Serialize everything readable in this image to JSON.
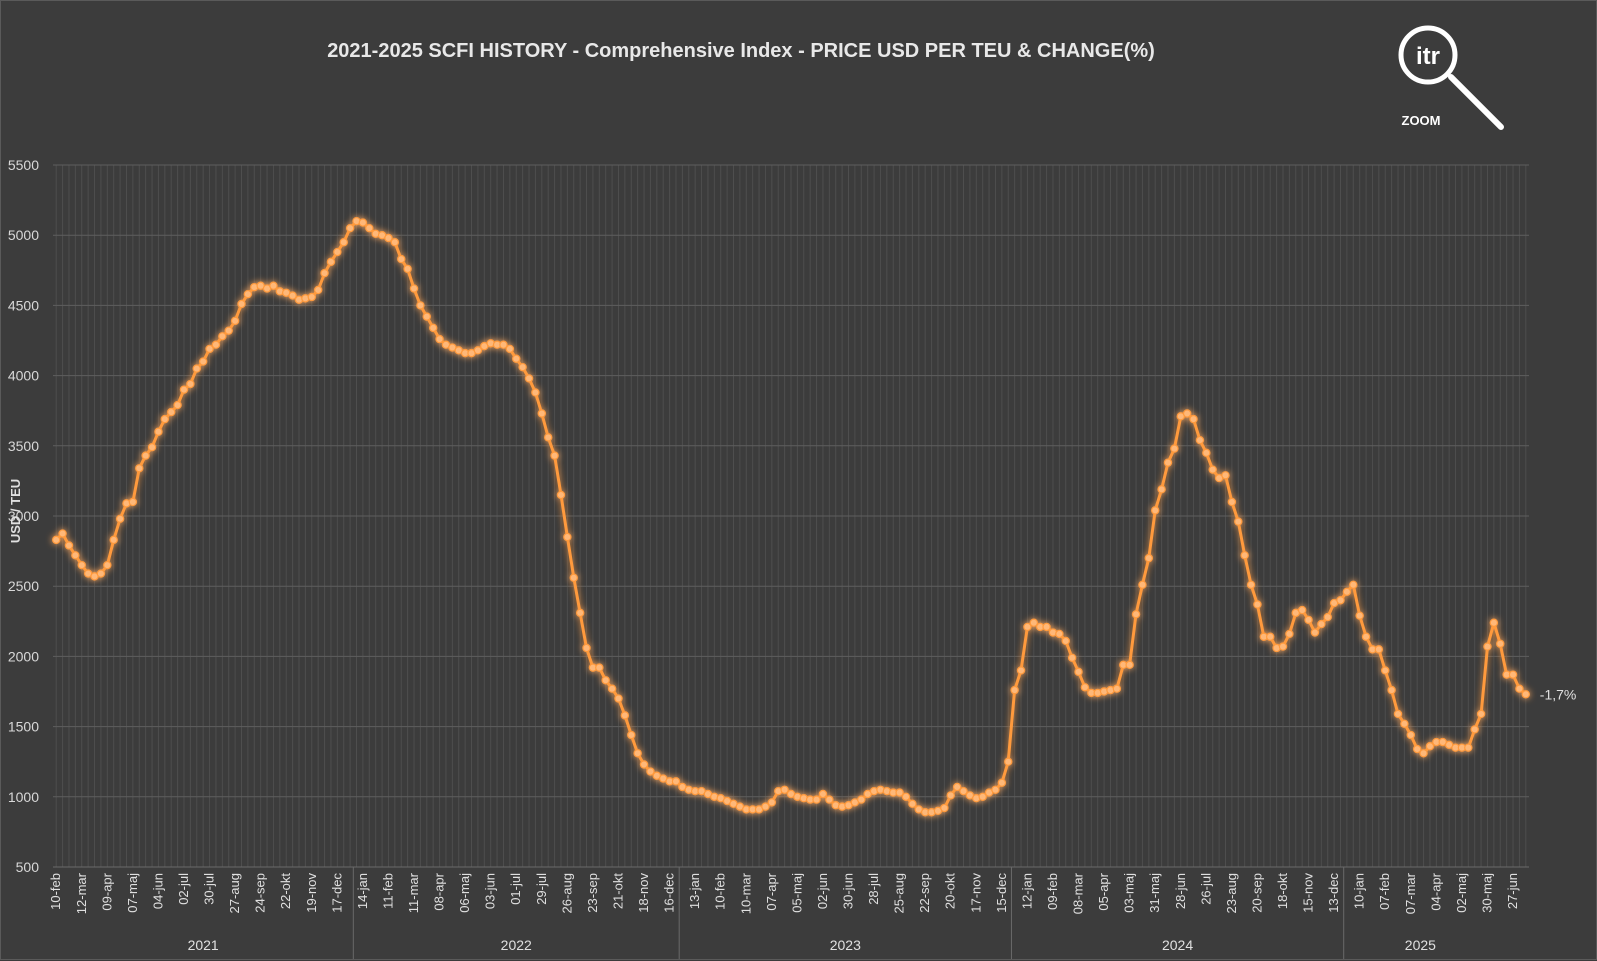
{
  "chart_data": {
    "type": "line",
    "title": "2021-2025 SCFI HISTORY - Comprehensive Index - PRICE USD PER TEU & CHANGE(%)",
    "ylabel": "USD / TEU",
    "ylim": [
      500,
      5500
    ],
    "yticks": [
      500,
      1000,
      1500,
      2000,
      2500,
      3000,
      3500,
      4000,
      4500,
      5000,
      5500
    ],
    "grid": true,
    "line_color": "#ff9a3c",
    "x_tick_labels": [
      "10-feb",
      "12-mar",
      "09-apr",
      "07-maj",
      "04-jun",
      "02-jul",
      "30-jul",
      "27-aug",
      "24-sep",
      "22-okt",
      "19-nov",
      "17-dec",
      "14-jan",
      "11-feb",
      "11-mar",
      "08-apr",
      "06-maj",
      "03-jun",
      "01-jul",
      "29-jul",
      "26-aug",
      "23-sep",
      "21-okt",
      "18-nov",
      "16-dec",
      "13-jan",
      "10-feb",
      "10-mar",
      "07-apr",
      "05-maj",
      "02-jun",
      "30-jun",
      "28-jul",
      "25-aug",
      "22-sep",
      "20-okt",
      "17-nov",
      "15-dec",
      "12-jan",
      "09-feb",
      "08-mar",
      "05-apr",
      "03-maj",
      "31-maj",
      "28-jun",
      "26-jul",
      "23-aug",
      "20-sep",
      "18-okt",
      "15-nov",
      "13-dec",
      "10-jan",
      "07-feb",
      "07-mar",
      "04-apr",
      "02-maj",
      "30-maj",
      "27-jun"
    ],
    "years": [
      {
        "label": "2021",
        "start": 0,
        "end": 46
      },
      {
        "label": "2022",
        "start": 47,
        "end": 97
      },
      {
        "label": "2023",
        "start": 98,
        "end": 149
      },
      {
        "label": "2024",
        "start": 150,
        "end": 201
      },
      {
        "label": "2025",
        "start": 202,
        "end": 225
      }
    ],
    "series": [
      {
        "values": [
          2830,
          2875,
          2790,
          2720,
          2650,
          2590,
          2570,
          2590,
          2650,
          2830,
          2980,
          3090,
          3100,
          3340,
          3430,
          3490,
          3600,
          3690,
          3740,
          3790,
          3900,
          3940,
          4050,
          4100,
          4190,
          4220,
          4280,
          4320,
          4390,
          4510,
          4580,
          4630,
          4640,
          4620,
          4640,
          4600,
          4590,
          4570,
          4540,
          4550,
          4560,
          4610,
          4730,
          4810,
          4880,
          4950,
          5050,
          5100,
          5090,
          5050,
          5010,
          5000,
          4980,
          4950,
          4830,
          4760,
          4620,
          4500,
          4420,
          4340,
          4260,
          4220,
          4200,
          4180,
          4160,
          4160,
          4180,
          4210,
          4230,
          4220,
          4220,
          4190,
          4120,
          4060,
          3980,
          3880,
          3730,
          3560,
          3430,
          3150,
          2850,
          2560,
          2310,
          2060,
          1920,
          1920,
          1830,
          1770,
          1700,
          1580,
          1440,
          1310,
          1230,
          1180,
          1150,
          1130,
          1110,
          1110,
          1070,
          1050,
          1040,
          1040,
          1020,
          1000,
          990,
          970,
          950,
          930,
          910,
          910,
          910,
          930,
          960,
          1040,
          1050,
          1020,
          1000,
          990,
          980,
          980,
          1020,
          980,
          940,
          930,
          940,
          960,
          980,
          1020,
          1040,
          1050,
          1040,
          1030,
          1030,
          1000,
          950,
          910,
          890,
          890,
          900,
          920,
          1010,
          1070,
          1040,
          1010,
          990,
          1000,
          1030,
          1050,
          1100,
          1250,
          1760,
          1900,
          2210,
          2240,
          2210,
          2210,
          2170,
          2160,
          2110,
          1990,
          1890,
          1780,
          1740,
          1740,
          1750,
          1760,
          1770,
          1940,
          1940,
          2300,
          2510,
          2700,
          3040,
          3190,
          3380,
          3480,
          3710,
          3730,
          3690,
          3540,
          3450,
          3330,
          3270,
          3290,
          3100,
          2960,
          2720,
          2510,
          2370,
          2140,
          2140,
          2060,
          2070,
          2160,
          2310,
          2330,
          2260,
          2170,
          2230,
          2280,
          2380,
          2400,
          2460,
          2510,
          2290,
          2140,
          2050,
          2050,
          1900,
          1760,
          1590,
          1520,
          1440,
          1340,
          1310,
          1360,
          1390,
          1390,
          1370,
          1350,
          1350,
          1350,
          1480,
          1590,
          2070,
          2240,
          2090,
          1870,
          1870,
          1770,
          1730
        ]
      }
    ],
    "end_annotation": "-1,7%"
  },
  "logo": {
    "text": "itr",
    "subtitle": "ZOOM",
    "icon": "magnifier-icon"
  }
}
